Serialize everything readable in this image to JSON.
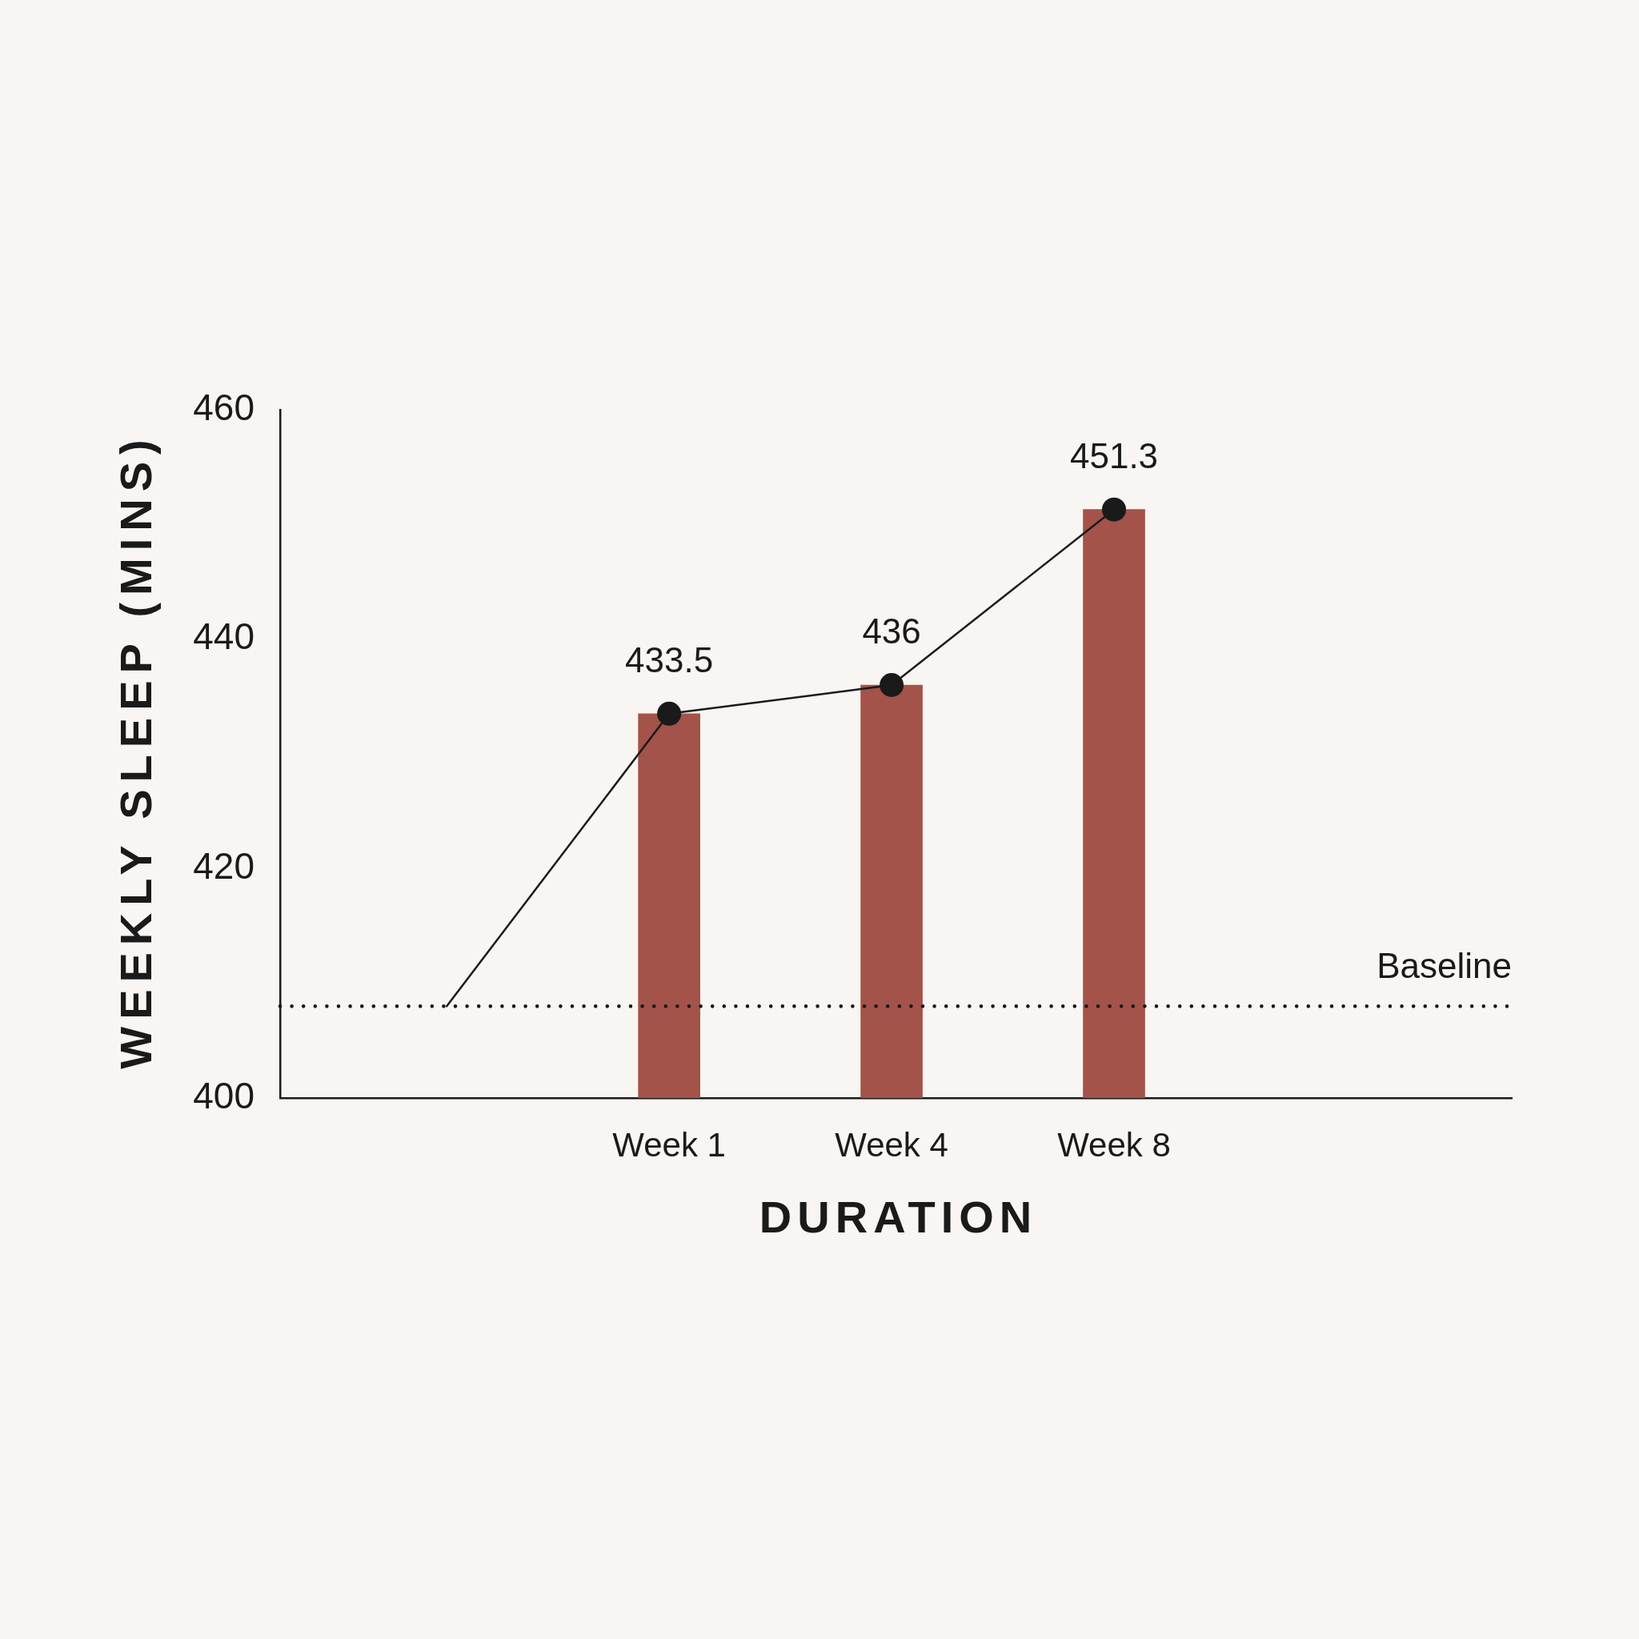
{
  "chart_data": {
    "type": "bar",
    "xlabel": "DURATION",
    "ylabel": "WEEKLY SLEEP (MINS)",
    "categories": [
      null,
      "Week 1",
      "Week 4",
      "Week 8"
    ],
    "series": [
      {
        "color": "#a3534a",
        "values": [
          null,
          433.5,
          436,
          451.3
        ]
      },
      {
        "type": "line",
        "color": "#1a1a1a",
        "values": [
          408,
          433.5,
          436,
          451.3
        ],
        "marker": "none",
        "line_style": "solid"
      },
      {
        "type": "scatter",
        "color": "#1a1a1a",
        "values": [
          null,
          433.5,
          436,
          451.3
        ],
        "marker": "circle",
        "value_labels": [
          null,
          "433.5",
          "436",
          "451.3"
        ]
      }
    ],
    "ylim": [
      400,
      460
    ],
    "yticks": [
      400,
      420,
      440,
      460
    ],
    "ref_lines": [
      {
        "axis": "y",
        "value": 408,
        "label": "Baseline",
        "color": "#1a1a1a",
        "line_style": "dotted"
      }
    ],
    "grid": false,
    "legend": false
  }
}
